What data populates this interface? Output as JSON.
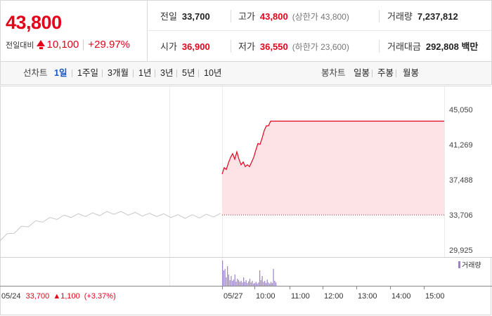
{
  "summary": {
    "price": "43,800",
    "change_label": "전일대비",
    "change_amount": "10,100",
    "change_percent": "+29.97%"
  },
  "stats": {
    "prev_close_label": "전일",
    "prev_close": "33,700",
    "high_label": "고가",
    "high": "43,800",
    "upper_limit": "(상한가 43,800)",
    "volume_label": "거래량",
    "volume": "7,237,812",
    "open_label": "시가",
    "open": "36,900",
    "low_label": "저가",
    "low": "36,550",
    "lower_limit": "(하한가 23,600)",
    "trade_value_label": "거래대금",
    "trade_value": "292,808 백만"
  },
  "tabs": {
    "line_label": "선차트",
    "line_periods": [
      "1일",
      "1주일",
      "3개월",
      "1년",
      "3년",
      "5년",
      "10년"
    ],
    "active_period": "1일",
    "candle_label": "봉차트",
    "candle_periods": [
      "일봉",
      "주봉",
      "월봉"
    ]
  },
  "colors": {
    "up": "#e4021b",
    "active_tab": "#1a55c4",
    "volume": "#9b83c4",
    "fill": "#fde3e6"
  },
  "chart_data": {
    "type": "line",
    "ylabels": [
      "45,050",
      "41,269",
      "37,488",
      "33,706",
      "29,925"
    ],
    "ylim": [
      29925,
      45050
    ],
    "xlabels": [
      "05/24",
      "05/27",
      "10:00",
      "11:00",
      "12:00",
      "13:00",
      "14:00",
      "15:00"
    ],
    "previous_day_series": {
      "name": "05/24",
      "values": [
        31100,
        31500,
        31900,
        32300,
        32600,
        32900,
        33100,
        33250,
        33400,
        33500,
        33600,
        33650,
        33700,
        33750,
        33800,
        33900,
        33950,
        33900,
        33850,
        33800,
        33750,
        33700,
        33700,
        33650,
        33600,
        33550,
        33500,
        33550,
        33550,
        33600,
        33650,
        33700
      ]
    },
    "today_series": {
      "name": "05/27",
      "values": [
        38100,
        38800,
        38600,
        39300,
        39900,
        40300,
        39700,
        40500,
        39700,
        39100,
        39400,
        38900,
        39100,
        38900,
        39400,
        39900,
        40700,
        41400,
        41300,
        42000,
        42800,
        43300,
        43300,
        43800,
        43800
      ]
    },
    "reference_price": 33700,
    "previous_day_note": {
      "date": "05/24",
      "close": "33,700",
      "change": "1,100",
      "change_pct": "(+3.37%)"
    },
    "volume_legend": "거래량",
    "volume_values": [
      90,
      55,
      60,
      30,
      70,
      40,
      20,
      35,
      18,
      22,
      40,
      15,
      25,
      20,
      14,
      18,
      12,
      30,
      14,
      20,
      10,
      16,
      25,
      12,
      18,
      8,
      10,
      14,
      8,
      12,
      55,
      20,
      35,
      14,
      18,
      10,
      22,
      12,
      8,
      14,
      10,
      60,
      18,
      12
    ]
  }
}
